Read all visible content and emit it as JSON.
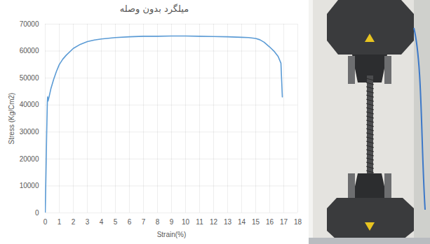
{
  "chart_data": {
    "type": "line",
    "title": "میلگرد بدون وصله",
    "x_label": "Strain(%)",
    "y_label": "Stress (Kg/Cm2)",
    "x": [
      0,
      0.05,
      0.1,
      0.15,
      0.17,
      0.2,
      0.25,
      0.4,
      0.6,
      0.8,
      1,
      1.25,
      1.5,
      2,
      2.5,
      3,
      3.5,
      4,
      5,
      6,
      7,
      8,
      9,
      10,
      11,
      12,
      13,
      14,
      14.5,
      15,
      15.3,
      15.6,
      16,
      16.3,
      16.6,
      16.8,
      16.9
    ],
    "values": [
      0,
      14000,
      29000,
      41000,
      43000,
      41500,
      42500,
      46000,
      49500,
      52500,
      55000,
      57000,
      58500,
      61000,
      62500,
      63500,
      64100,
      64500,
      65000,
      65300,
      65500,
      65500,
      65600,
      65600,
      65500,
      65400,
      65300,
      65100,
      65000,
      64700,
      64200,
      63300,
      61500,
      60000,
      58000,
      55500,
      43000
    ],
    "color": "#5b9bd5",
    "xlim": [
      0,
      18
    ],
    "xticks": [
      0,
      1,
      2,
      3,
      4,
      5,
      6,
      7,
      8,
      9,
      10,
      11,
      12,
      13,
      14,
      15,
      16,
      17,
      18
    ],
    "ylim": [
      0,
      70000
    ],
    "yticks": [
      0,
      10000,
      20000,
      30000,
      40000,
      50000,
      60000,
      70000
    ],
    "grid": true
  }
}
